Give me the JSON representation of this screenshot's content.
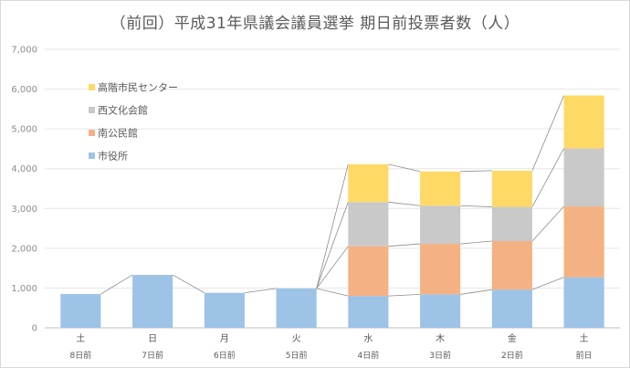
{
  "chart_data": {
    "type": "bar",
    "title": "（前回）平成31年県議会議員選挙 期日前投票者数（人）",
    "ylim": [
      0,
      7000
    ],
    "y_ticks": [
      "0",
      "1,000",
      "2,000",
      "3,000",
      "4,000",
      "5,000",
      "6,000",
      "7,000"
    ],
    "categories": [
      "土",
      "日",
      "月",
      "火",
      "水",
      "木",
      "金",
      "土"
    ],
    "subcategories": [
      "8日前",
      "7日前",
      "6日前",
      "5日前",
      "4日前",
      "3日前",
      "2日前",
      "前日"
    ],
    "stacked": true,
    "legend_position": "top-left",
    "series": [
      {
        "name": "市役所",
        "color": "#9dc3e6",
        "values": [
          850,
          1330,
          880,
          990,
          800,
          840,
          960,
          1270
        ]
      },
      {
        "name": "南公民館",
        "color": "#f4b183",
        "values": [
          0,
          0,
          0,
          0,
          1250,
          1270,
          1220,
          1780
        ]
      },
      {
        "name": "西文化会館",
        "color": "#c9c9c9",
        "values": [
          0,
          0,
          0,
          0,
          1110,
          960,
          860,
          1460
        ]
      },
      {
        "name": "高階市民センター",
        "color": "#ffd966",
        "values": [
          0,
          0,
          0,
          0,
          950,
          860,
          910,
          1330
        ]
      }
    ],
    "grid": true
  }
}
